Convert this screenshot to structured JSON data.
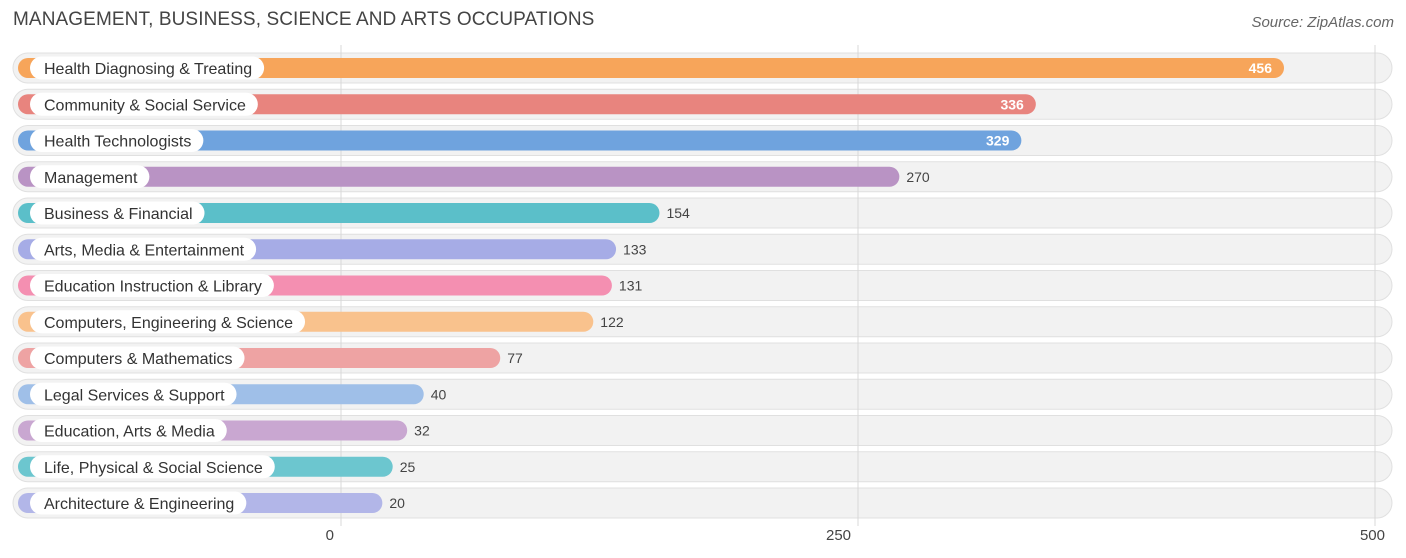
{
  "title": "MANAGEMENT, BUSINESS, SCIENCE AND ARTS OCCUPATIONS",
  "source": "Source: ZipAtlas.com",
  "chart_data": {
    "type": "bar",
    "orientation": "horizontal",
    "title": "MANAGEMENT, BUSINESS, SCIENCE AND ARTS OCCUPATIONS",
    "xlim": [
      0,
      500
    ],
    "xticks": [
      "0",
      "250",
      "500"
    ],
    "grid": true,
    "categories": [
      "Health Diagnosing & Treating",
      "Community & Social Service",
      "Health Technologists",
      "Management",
      "Business & Financial",
      "Arts, Media & Entertainment",
      "Education Instruction & Library",
      "Computers, Engineering & Science",
      "Computers & Mathematics",
      "Legal Services & Support",
      "Education, Arts & Media",
      "Life, Physical & Social Science",
      "Architecture & Engineering"
    ],
    "values": [
      456,
      336,
      329,
      270,
      154,
      133,
      131,
      122,
      77,
      40,
      32,
      25,
      20
    ],
    "colors": [
      "#f7a55a",
      "#e8847e",
      "#6fa3de",
      "#b993c4",
      "#5bbfc9",
      "#a6ace6",
      "#f48fb1",
      "#f9c28d",
      "#eea3a3",
      "#9fbfe8",
      "#c9a7d1",
      "#6cc6cf",
      "#b2b6e8"
    ]
  }
}
